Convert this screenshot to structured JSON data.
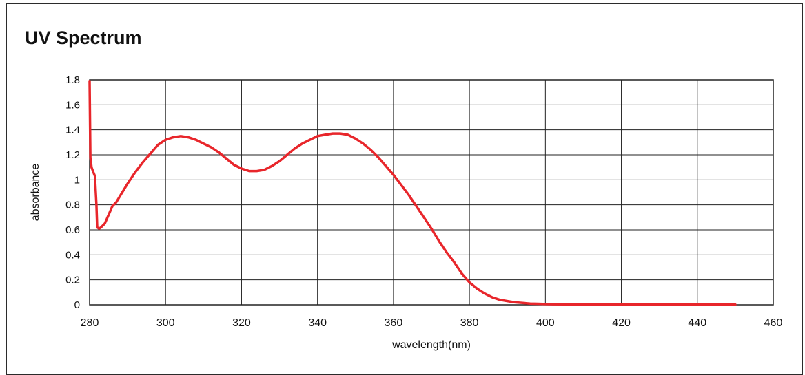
{
  "chart_data": {
    "type": "line",
    "title": "UV Spectrum",
    "xlabel": "wavelength(nm)",
    "ylabel": "absorbance",
    "xlim": [
      280,
      460
    ],
    "ylim": [
      0,
      1.8
    ],
    "x_ticks": [
      280,
      300,
      320,
      340,
      360,
      380,
      400,
      420,
      440,
      460
    ],
    "x_tick_labels": [
      "280",
      "300",
      "320",
      "340",
      "360",
      "380",
      "400",
      "420",
      "440",
      "460"
    ],
    "y_ticks": [
      0,
      0.2,
      0.4,
      0.6,
      0.8,
      1.0,
      1.2,
      1.4,
      1.6,
      1.8
    ],
    "y_tick_labels": [
      "0",
      "0.2",
      "0.4",
      "0.6",
      "0.8",
      "1",
      "1.2",
      "1.4",
      "1.6",
      "1.8"
    ],
    "grid": true,
    "legend": "none",
    "series": [
      {
        "color": "#e8262b",
        "x": [
          280.0,
          280.2,
          280.5,
          281.0,
          281.4,
          281.8,
          282.0,
          282.5,
          283.0,
          284.0,
          285.0,
          286.0,
          287.0,
          288.0,
          290.0,
          292.0,
          294.0,
          296.0,
          298.0,
          300.0,
          302.0,
          304.0,
          306.0,
          308.0,
          310.0,
          312.0,
          314.0,
          316.0,
          318.0,
          320.0,
          322.0,
          324.0,
          326.0,
          328.0,
          330.0,
          332.0,
          334.0,
          336.0,
          338.0,
          340.0,
          342.0,
          344.0,
          346.0,
          348.0,
          350.0,
          352.0,
          354.0,
          356.0,
          358.0,
          360.0,
          362.0,
          364.0,
          366.0,
          368.0,
          370.0,
          372.0,
          374.0,
          376.0,
          378.0,
          380.0,
          382.0,
          384.0,
          386.0,
          388.0,
          390.0,
          392.0,
          394.0,
          396.0,
          398.0,
          400.0,
          402.0,
          405.0,
          410.0,
          420.0,
          430.0,
          440.0,
          450.0
        ],
        "y": [
          1.79,
          1.18,
          1.1,
          1.06,
          1.03,
          0.8,
          0.62,
          0.61,
          0.62,
          0.65,
          0.72,
          0.79,
          0.82,
          0.87,
          0.97,
          1.06,
          1.14,
          1.21,
          1.28,
          1.32,
          1.34,
          1.35,
          1.34,
          1.32,
          1.29,
          1.26,
          1.22,
          1.17,
          1.12,
          1.09,
          1.07,
          1.07,
          1.08,
          1.11,
          1.15,
          1.2,
          1.25,
          1.29,
          1.32,
          1.35,
          1.36,
          1.37,
          1.37,
          1.36,
          1.33,
          1.29,
          1.24,
          1.18,
          1.11,
          1.04,
          0.96,
          0.88,
          0.79,
          0.7,
          0.61,
          0.51,
          0.42,
          0.34,
          0.25,
          0.18,
          0.13,
          0.09,
          0.06,
          0.04,
          0.03,
          0.02,
          0.015,
          0.01,
          0.008,
          0.006,
          0.005,
          0.004,
          0.003,
          0.002,
          0.002,
          0.002,
          0.002
        ]
      }
    ]
  }
}
